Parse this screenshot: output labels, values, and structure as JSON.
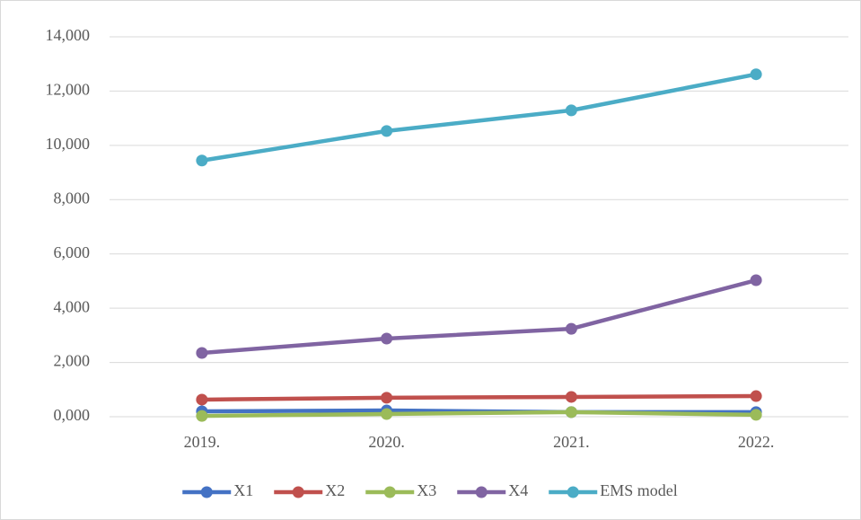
{
  "chart_data": {
    "type": "line",
    "categories": [
      "2019.",
      "2020.",
      "2021.",
      "2022."
    ],
    "series": [
      {
        "name": "X1",
        "color": "#4472c4",
        "values": [
          0.2,
          0.23,
          0.17,
          0.17
        ]
      },
      {
        "name": "X2",
        "color": "#c0504d",
        "values": [
          0.63,
          0.7,
          0.73,
          0.76
        ]
      },
      {
        "name": "X3",
        "color": "#9bbb59",
        "values": [
          0.03,
          0.1,
          0.17,
          0.07
        ]
      },
      {
        "name": "X4",
        "color": "#8064a2",
        "values": [
          2.35,
          2.88,
          3.24,
          5.03
        ]
      },
      {
        "name": "EMS model",
        "color": "#4bacc6",
        "values": [
          9.44,
          10.53,
          11.29,
          12.62
        ]
      }
    ],
    "ylim": [
      0,
      14
    ],
    "yticks": [
      {
        "value": 0,
        "label": "0,000"
      },
      {
        "value": 2,
        "label": "2,000"
      },
      {
        "value": 4,
        "label": "4,000"
      },
      {
        "value": 6,
        "label": "6,000"
      },
      {
        "value": 8,
        "label": "8,000"
      },
      {
        "value": 10,
        "label": "10,000"
      },
      {
        "value": 12,
        "label": "12,000"
      },
      {
        "value": 14,
        "label": "14,000"
      }
    ],
    "grid": true,
    "legend": "bottom"
  }
}
